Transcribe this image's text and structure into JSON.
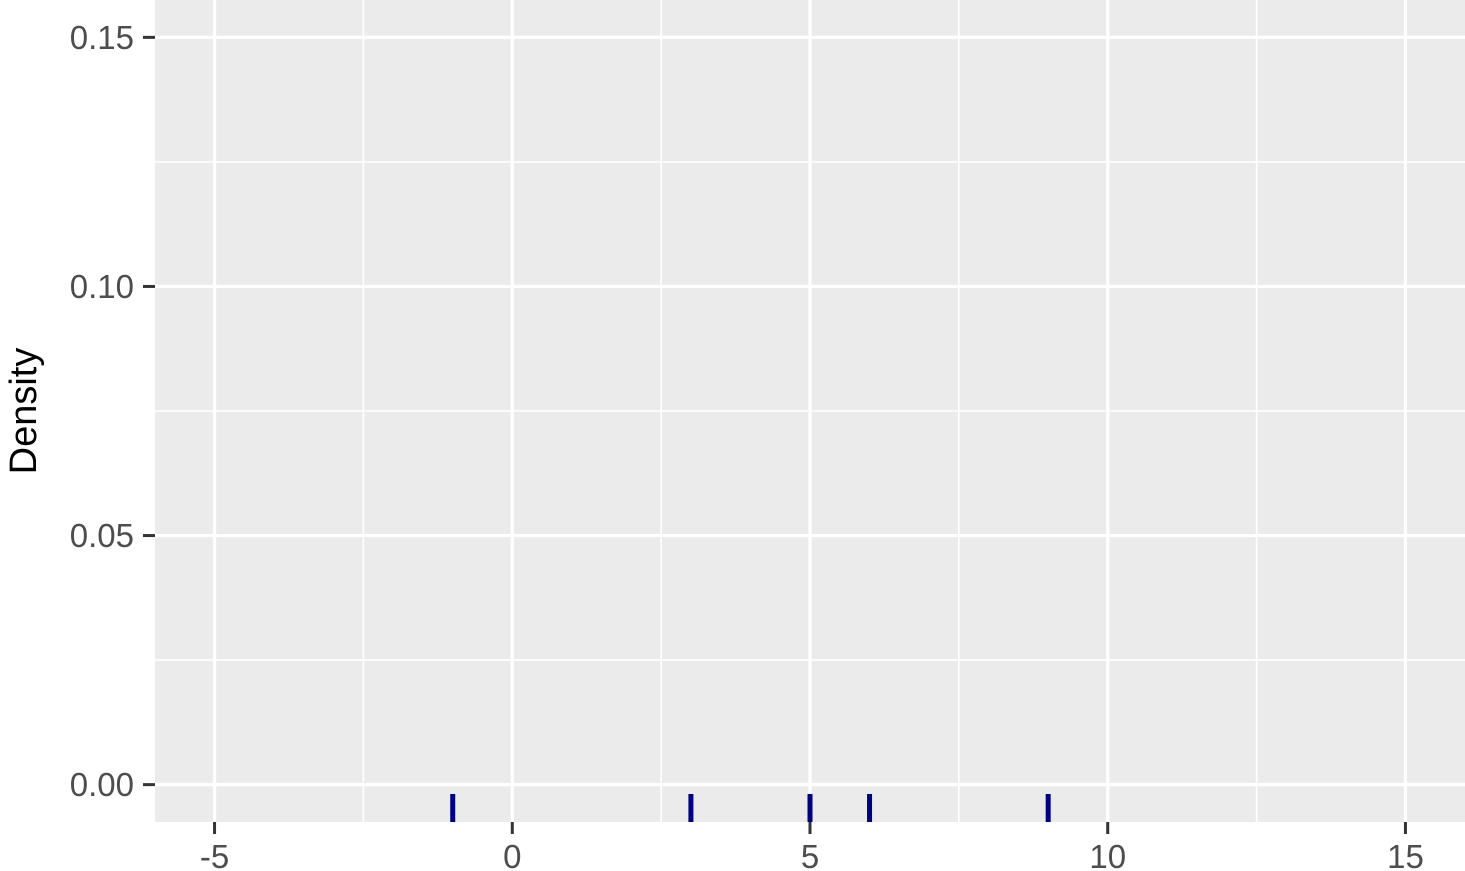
{
  "chart_data": {
    "type": "rug",
    "title": "",
    "xlabel": "",
    "ylabel": "Density",
    "xlim": [
      -6.0,
      16.0
    ],
    "ylim": [
      -0.0075,
      0.1575
    ],
    "x_ticks": [
      -5,
      0,
      5,
      10,
      15
    ],
    "x_tick_labels": [
      "-5",
      "0",
      "5",
      "10",
      "15"
    ],
    "y_ticks": [
      0.0,
      0.05,
      0.1,
      0.15
    ],
    "y_tick_labels": [
      "0.00",
      "0.05",
      "0.10",
      "0.15"
    ],
    "x_minor_ticks": [
      -2.5,
      2.5,
      7.5,
      12.5
    ],
    "y_minor_ticks": [
      0.025,
      0.075,
      0.125
    ],
    "grid": true,
    "rug_values": [
      -1,
      3,
      5,
      6,
      9
    ],
    "colors": {
      "panel_background": "#ebebeb",
      "grid": "#ffffff",
      "rug": "#000080",
      "tick_label": "#4d4d4d",
      "axis_tick": "#333333"
    }
  }
}
